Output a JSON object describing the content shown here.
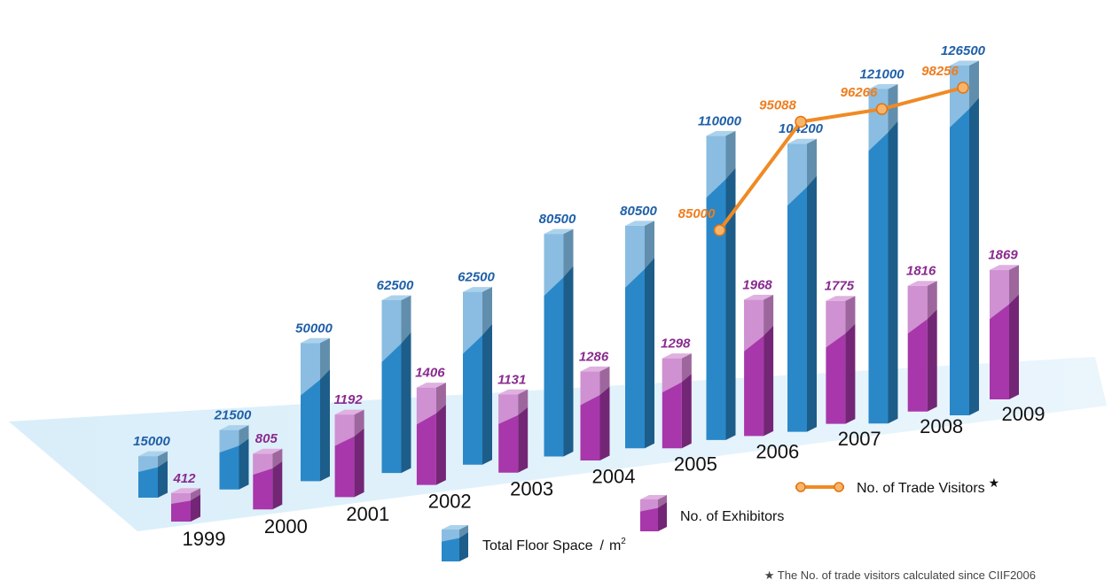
{
  "chart_data": {
    "type": "bar",
    "categories": [
      "1999",
      "2000",
      "2001",
      "2002",
      "2003",
      "2004",
      "2005",
      "2006",
      "2007",
      "2008",
      "2009"
    ],
    "series": [
      {
        "name": "Total Floor Space",
        "unit": "m",
        "superscript": "2",
        "separator": "/",
        "color": "#2c8fd3",
        "values": [
          15000,
          21500,
          50000,
          62500,
          62500,
          80500,
          80500,
          110000,
          104200,
          121000,
          126500
        ],
        "labels": [
          "15000",
          "21500",
          "50000",
          "62500",
          "62500",
          "80500",
          "80500",
          "110000",
          "104200",
          "121000",
          "126500"
        ]
      },
      {
        "name": "No. of Exhibitors",
        "color": "#b13ab4",
        "values": [
          412,
          805,
          1192,
          1406,
          1131,
          1286,
          1298,
          1968,
          1775,
          1816,
          1869
        ],
        "labels": [
          "412",
          "805",
          "1192",
          "1406",
          "1131",
          "1286",
          "1298",
          "1968",
          "1775",
          "1816",
          "1869"
        ]
      },
      {
        "name": "No. of Trade Visitors",
        "star": "★",
        "type": "line",
        "color": "#f08a24",
        "x": [
          "2006",
          "2007",
          "2008",
          "2009"
        ],
        "values": [
          85000,
          95088,
          96266,
          98256
        ],
        "labels": [
          "85000",
          "95088",
          "96266",
          "98256"
        ]
      }
    ],
    "note": "★ The No. of trade visitors calculated since CIIF2006"
  }
}
